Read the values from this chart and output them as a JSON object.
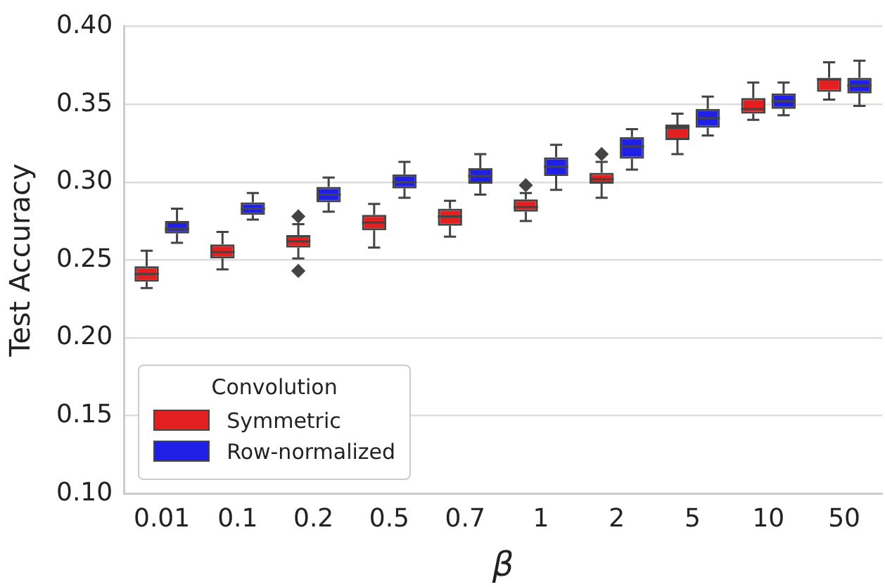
{
  "chart_data": {
    "type": "box",
    "xlabel": "β",
    "ylabel": "Test Accuracy",
    "legend_title": "Convolution",
    "legend": "bottom left",
    "grid": "y",
    "marker": "diamond",
    "categories": [
      "0.01",
      "0.1",
      "0.2",
      "0.5",
      "0.7",
      "1",
      "2",
      "5",
      "10",
      "50"
    ],
    "ylim": [
      0.1,
      0.4
    ],
    "yticks": [
      {
        "value": 0.1,
        "label": "0.10"
      },
      {
        "value": 0.15,
        "label": "0.15"
      },
      {
        "value": 0.2,
        "label": "0.20"
      },
      {
        "value": 0.25,
        "label": "0.25"
      },
      {
        "value": 0.3,
        "label": "0.30"
      },
      {
        "value": 0.35,
        "label": "0.35"
      },
      {
        "value": 0.4,
        "label": "0.40"
      }
    ],
    "series": [
      {
        "name": "Symmetric",
        "color": "#e41f1f",
        "boxes": [
          {
            "low": 0.232,
            "q1": 0.236,
            "median": 0.241,
            "q3": 0.246,
            "high": 0.256
          },
          {
            "low": 0.244,
            "q1": 0.251,
            "median": 0.255,
            "q3": 0.26,
            "high": 0.268
          },
          {
            "low": 0.251,
            "q1": 0.258,
            "median": 0.262,
            "q3": 0.266,
            "high": 0.273,
            "outliers": [
              0.278,
              0.243
            ]
          },
          {
            "low": 0.258,
            "q1": 0.269,
            "median": 0.274,
            "q3": 0.279,
            "high": 0.286
          },
          {
            "low": 0.265,
            "q1": 0.272,
            "median": 0.278,
            "q3": 0.283,
            "high": 0.288
          },
          {
            "low": 0.275,
            "q1": 0.281,
            "median": 0.284,
            "q3": 0.289,
            "high": 0.293,
            "outliers": [
              0.298
            ]
          },
          {
            "low": 0.29,
            "q1": 0.299,
            "median": 0.302,
            "q3": 0.306,
            "high": 0.313,
            "outliers": [
              0.318
            ]
          },
          {
            "low": 0.318,
            "q1": 0.327,
            "median": 0.335,
            "q3": 0.337,
            "high": 0.344
          },
          {
            "low": 0.34,
            "q1": 0.344,
            "median": 0.347,
            "q3": 0.354,
            "high": 0.364
          },
          {
            "low": 0.353,
            "q1": 0.358,
            "median": 0.366,
            "q3": 0.367,
            "high": 0.377
          }
        ]
      },
      {
        "name": "Row-normalized",
        "color": "#1f1fe6",
        "boxes": [
          {
            "low": 0.261,
            "q1": 0.267,
            "median": 0.27,
            "q3": 0.275,
            "high": 0.283
          },
          {
            "low": 0.276,
            "q1": 0.279,
            "median": 0.283,
            "q3": 0.287,
            "high": 0.293
          },
          {
            "low": 0.281,
            "q1": 0.287,
            "median": 0.292,
            "q3": 0.297,
            "high": 0.303
          },
          {
            "low": 0.29,
            "q1": 0.296,
            "median": 0.3,
            "q3": 0.305,
            "high": 0.313
          },
          {
            "low": 0.292,
            "q1": 0.299,
            "median": 0.304,
            "q3": 0.309,
            "high": 0.318
          },
          {
            "low": 0.295,
            "q1": 0.304,
            "median": 0.31,
            "q3": 0.316,
            "high": 0.324
          },
          {
            "low": 0.308,
            "q1": 0.315,
            "median": 0.323,
            "q3": 0.329,
            "high": 0.334
          },
          {
            "low": 0.33,
            "q1": 0.335,
            "median": 0.341,
            "q3": 0.347,
            "high": 0.355
          },
          {
            "low": 0.343,
            "q1": 0.347,
            "median": 0.352,
            "q3": 0.357,
            "high": 0.364
          },
          {
            "low": 0.349,
            "q1": 0.357,
            "median": 0.362,
            "q3": 0.367,
            "high": 0.378
          }
        ]
      }
    ]
  }
}
